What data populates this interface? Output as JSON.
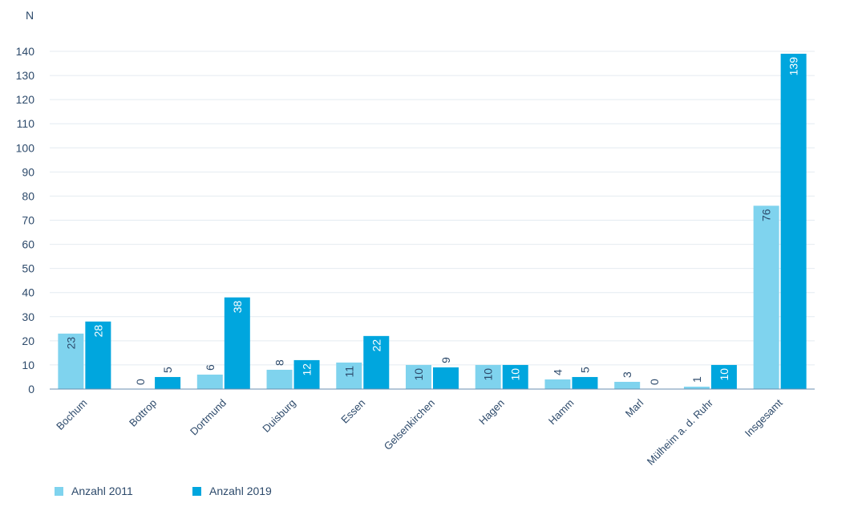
{
  "chart_data": {
    "type": "bar",
    "ylabel": "N",
    "ylim": [
      0,
      140
    ],
    "yticks": [
      0,
      10,
      20,
      30,
      40,
      50,
      60,
      70,
      80,
      90,
      100,
      110,
      120,
      130,
      140
    ],
    "grid": true,
    "legend_position": "bottom-left",
    "categories": [
      "Bochum",
      "Bottrop",
      "Dortmund",
      "Duisburg",
      "Essen",
      "Gelsenkirchen",
      "Hagen",
      "Hamm",
      "Marl",
      "Mülheim a. d. Ruhr",
      "Insgesamt"
    ],
    "series": [
      {
        "name": "Anzahl 2011",
        "color": "#7fd3ee",
        "values": [
          23,
          0,
          6,
          8,
          11,
          10,
          10,
          4,
          3,
          1,
          76
        ]
      },
      {
        "name": "Anzahl 2019",
        "color": "#00a6de",
        "values": [
          28,
          5,
          38,
          12,
          22,
          9,
          10,
          5,
          0,
          10,
          139
        ]
      }
    ]
  }
}
